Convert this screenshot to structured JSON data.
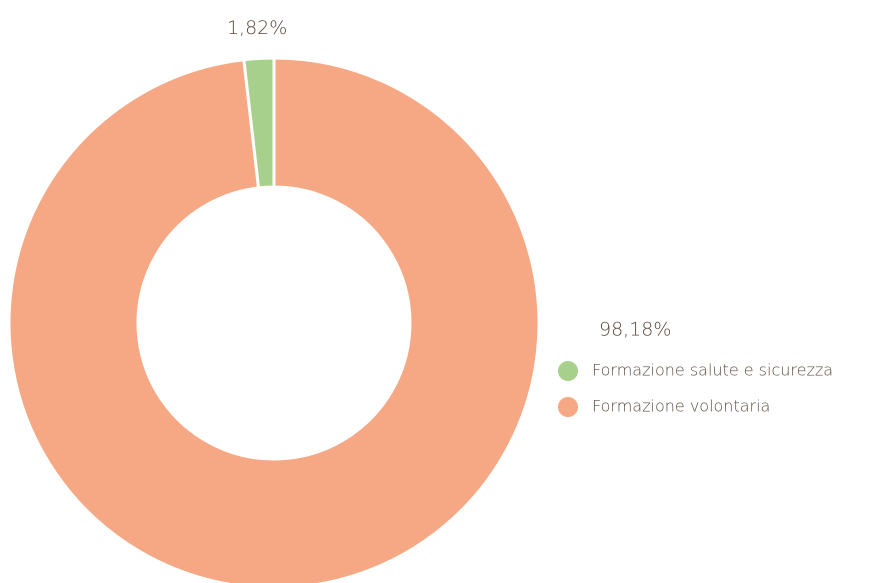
{
  "chart_data": {
    "type": "donut",
    "categories": [
      "Formazione salute e sicurezza",
      "Formazione volontaria"
    ],
    "values": [
      1.82,
      98.18
    ],
    "value_labels": [
      "1,82%",
      "98,18%"
    ],
    "colors": [
      "#a8d08d",
      "#f5a883"
    ],
    "legend": "bottom-right"
  }
}
